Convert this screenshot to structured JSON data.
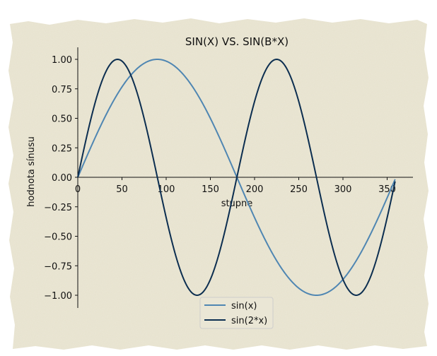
{
  "chart_data": {
    "type": "line",
    "title": "SIN(X) VS. SIN(B*X)",
    "xlabel": "stupne",
    "ylabel": "hodnota sínusu",
    "xlim": [
      0,
      380
    ],
    "ylim": [
      -1.1,
      1.1
    ],
    "x_ticks": [
      0,
      50,
      100,
      150,
      200,
      250,
      300,
      350
    ],
    "x_tick_labels": [
      "0",
      "50",
      "100",
      "150",
      "200",
      "250",
      "300",
      "350"
    ],
    "y_ticks": [
      1.0,
      0.75,
      0.5,
      0.25,
      0.0,
      -0.25,
      -0.5,
      -0.75,
      -1.0
    ],
    "y_tick_labels": [
      "1.00",
      "0.75",
      "0.50",
      "0.25",
      "0.00",
      "−0.25",
      "−0.50",
      "−0.75",
      "−1.00"
    ],
    "x_domain": [
      0,
      359
    ],
    "grid": false,
    "legend_position": "bottom-center",
    "series": [
      {
        "name": "sin(x)",
        "formula": "sin(x)",
        "frequency": 1,
        "color": "#4f86b2"
      },
      {
        "name": "sin(2*x)",
        "formula": "sin(2*x)",
        "frequency": 2,
        "color": "#0c2e50"
      }
    ],
    "background": {
      "paper": "#ebe7d6",
      "paper_texture": "#d9d3bd"
    }
  }
}
